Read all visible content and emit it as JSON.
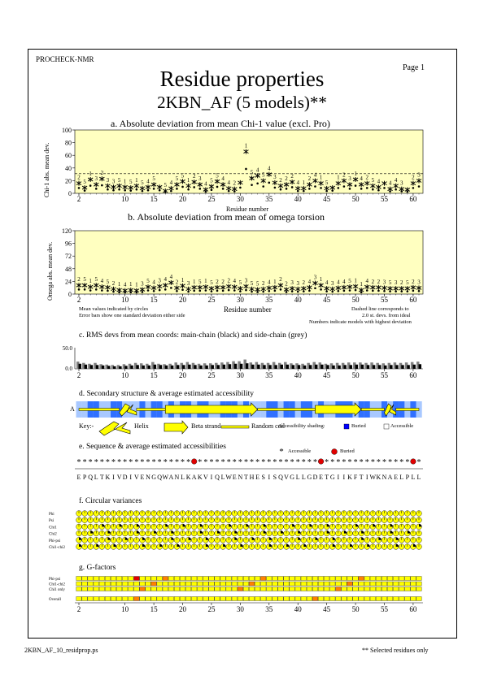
{
  "header": {
    "program": "PROCHECK-NMR",
    "page": "Page  1",
    "title": "Residue properties",
    "subtitle": "2KBN_AF (5 models)**"
  },
  "footer": {
    "filename": "2KBN_AF_10_residprop.ps",
    "note": "** Selected residues only"
  },
  "chart_data": [
    {
      "type": "scatter",
      "id": "a",
      "title": "a. Absolute deviation from mean Chi-1 value (excl. Pro)",
      "ylabel": "Chi-1 abs. mean dev.",
      "xlabel": "Residue number",
      "ylim": [
        0,
        100
      ],
      "yticks": [
        "0",
        "20",
        "40",
        "60",
        "80",
        "100"
      ],
      "xticks": [
        "2",
        "10",
        "15",
        "20",
        "25",
        "30",
        "35",
        "40",
        "45",
        "50",
        "55",
        "60"
      ],
      "xlim": [
        1,
        62
      ],
      "background": "#ffffc0",
      "dashed_line": 31,
      "x": [
        2,
        3,
        4,
        5,
        6,
        7,
        8,
        9,
        10,
        11,
        12,
        13,
        14,
        15,
        16,
        17,
        18,
        19,
        20,
        21,
        22,
        23,
        24,
        25,
        26,
        27,
        28,
        29,
        30,
        31,
        32,
        33,
        34,
        35,
        36,
        37,
        38,
        39,
        40,
        41,
        42,
        43,
        44,
        45,
        46,
        47,
        48,
        49,
        50,
        51,
        52,
        53,
        54,
        55,
        56,
        57,
        58,
        59,
        60,
        61
      ],
      "y": [
        12,
        5,
        18,
        10,
        19,
        8,
        6,
        8,
        6,
        5,
        8,
        4,
        6,
        10,
        6,
        0,
        4,
        10,
        15,
        8,
        14,
        10,
        2,
        7,
        15,
        10,
        4,
        3,
        13,
        62,
        20,
        24,
        16,
        26,
        13,
        8,
        10,
        14,
        4,
        4,
        10,
        16,
        12,
        4,
        5,
        12,
        16,
        10,
        18,
        10,
        12,
        8,
        6,
        12,
        3,
        8,
        3,
        2,
        12,
        16
      ],
      "labels": [
        "2",
        "5",
        "1",
        "3",
        "2",
        "3",
        "3",
        "5",
        "1",
        "5",
        "1",
        "5",
        "4",
        "5",
        "",
        "5",
        "4",
        "5",
        "5",
        "1",
        "2",
        "3",
        "4",
        "5",
        "5",
        "4",
        "4",
        "2",
        "",
        "1",
        "5",
        "4",
        "5",
        "4",
        "3",
        "2",
        "2",
        "2",
        "4",
        "1",
        "2",
        "4",
        "1",
        "5",
        "",
        "1",
        "2",
        "3",
        "1",
        "4",
        "2",
        "5",
        "4",
        "",
        "4",
        "4",
        "3",
        "",
        "2",
        "3"
      ]
    },
    {
      "type": "scatter",
      "id": "b",
      "title": "b. Absolute deviation from mean of omega torsion",
      "ylabel": "Omega abs. mean dev.",
      "xlabel": "Residue number",
      "ylim": [
        0,
        120
      ],
      "yticks": [
        "0",
        "24",
        "48",
        "72",
        "96",
        "120"
      ],
      "xticks": [
        "2",
        "10",
        "15",
        "20",
        "25",
        "30",
        "35",
        "40",
        "45",
        "50",
        "55",
        "60"
      ],
      "xlim": [
        1,
        62
      ],
      "background": "#ffffc0",
      "x": [
        2,
        3,
        4,
        5,
        6,
        7,
        8,
        9,
        10,
        11,
        12,
        13,
        14,
        15,
        16,
        17,
        18,
        19,
        20,
        21,
        22,
        23,
        24,
        25,
        26,
        27,
        28,
        29,
        30,
        31,
        32,
        33,
        34,
        35,
        36,
        37,
        38,
        39,
        40,
        41,
        42,
        43,
        44,
        45,
        46,
        47,
        48,
        49,
        50,
        51,
        52,
        53,
        54,
        55,
        56,
        57,
        58,
        59,
        60,
        61
      ],
      "y": [
        12,
        12,
        9,
        12,
        9,
        8,
        5,
        3,
        2,
        3,
        2,
        4,
        9,
        7,
        10,
        12,
        17,
        7,
        11,
        5,
        8,
        8,
        9,
        6,
        8,
        8,
        10,
        9,
        6,
        10,
        5,
        4,
        5,
        7,
        8,
        12,
        4,
        6,
        5,
        6,
        8,
        16,
        12,
        6,
        5,
        7,
        8,
        9,
        10,
        3,
        9,
        8,
        8,
        7,
        6,
        6,
        6,
        6,
        8,
        7
      ],
      "labels": [
        "2",
        "5",
        "1",
        "5",
        "4",
        "5",
        "2",
        "1",
        "4",
        "1",
        "1",
        "3",
        "5",
        "4",
        "3",
        "4",
        "4",
        "2",
        "1",
        "3",
        "1",
        "5",
        "1",
        "5",
        "2",
        "2",
        "2",
        "4",
        "5",
        "3",
        "5",
        "5",
        "2",
        "4",
        "1",
        "2",
        "2",
        "3",
        "3",
        "2",
        "4",
        "3",
        "1",
        "4",
        "3",
        "4",
        "4",
        "5",
        "1",
        "1",
        "4",
        "2",
        "2",
        "3",
        "5",
        "3",
        "2",
        "5",
        "2",
        "3"
      ]
    },
    {
      "type": "bar",
      "id": "c",
      "title": "c. RMS devs from mean coords: main-chain (black) and side-chain (grey)",
      "ylim": [
        0,
        50
      ],
      "yticks": [
        "0.0",
        "50.0"
      ],
      "xticks": [
        "2",
        "10",
        "15",
        "20",
        "25",
        "30",
        "35",
        "40",
        "45",
        "50",
        "55",
        "60"
      ],
      "series": [
        {
          "name": "main-chain",
          "values": [
            12,
            10,
            9,
            9,
            8,
            7,
            6,
            6,
            7,
            8,
            9,
            8,
            8,
            10,
            9,
            8,
            8,
            9,
            9,
            10,
            9,
            8,
            8,
            9,
            9,
            10,
            11,
            12,
            12,
            13,
            10,
            10,
            9,
            9,
            9,
            10,
            10,
            9,
            9,
            8,
            9,
            10,
            10,
            9,
            8,
            8,
            9,
            9,
            10,
            10,
            9,
            9,
            9,
            8,
            9,
            9,
            9,
            9,
            10,
            11
          ]
        },
        {
          "name": "side-chain",
          "values": [
            17,
            14,
            12,
            14,
            11,
            10,
            9,
            9,
            11,
            12,
            14,
            13,
            12,
            16,
            12,
            11,
            12,
            15,
            14,
            16,
            14,
            12,
            13,
            13,
            14,
            15,
            16,
            18,
            18,
            22,
            15,
            16,
            14,
            14,
            16,
            14,
            16,
            13,
            13,
            12,
            14,
            16,
            15,
            12,
            13,
            14,
            14,
            15,
            15,
            15,
            14,
            15,
            14,
            13,
            14,
            15,
            14,
            15,
            16,
            17
          ]
        }
      ]
    },
    {
      "type": "heatmap",
      "id": "d",
      "title": "d. Secondary structure & average estimated accessibility",
      "chain": "A",
      "accessibility": [
        1,
        1,
        0,
        0,
        1,
        1,
        0,
        0,
        1,
        1,
        1,
        0,
        1,
        0,
        0,
        1,
        0,
        1,
        0,
        0,
        1,
        0,
        0,
        1,
        1,
        0,
        0,
        0,
        1,
        0,
        1,
        1,
        1,
        0,
        0,
        1,
        0,
        0,
        1,
        0,
        0,
        1,
        0,
        1,
        1,
        0,
        0,
        0,
        1,
        0,
        0,
        1,
        1,
        0,
        1,
        0,
        0,
        1,
        0,
        1
      ],
      "segments": [
        {
          "type": "coil",
          "start": 2,
          "end": 9
        },
        {
          "type": "helix",
          "start": 9,
          "end": 12
        },
        {
          "type": "coil",
          "start": 12,
          "end": 17
        },
        {
          "type": "strand",
          "start": 17,
          "end": 33
        },
        {
          "type": "coil",
          "start": 33,
          "end": 43
        },
        {
          "type": "strand",
          "start": 43,
          "end": 51
        },
        {
          "type": "coil",
          "start": 51,
          "end": 55
        },
        {
          "type": "helix",
          "start": 55,
          "end": 57
        },
        {
          "type": "coil",
          "start": 57,
          "end": 61
        }
      ],
      "key": {
        "label": "Key:-",
        "helix": "Helix",
        "strand": "Beta strand",
        "coil": "Random coil",
        "shading": "Accessibility shading:",
        "buried": "Buried",
        "accessible": "Accessible"
      }
    },
    {
      "type": "table",
      "id": "e",
      "title": "e. Sequence & average estimated accessibilities",
      "legend": {
        "accessible": "Accessible",
        "buried": "Buried"
      },
      "sequence": [
        "E",
        "P",
        "Q",
        "L",
        "T",
        "K",
        "I",
        "V",
        "D",
        "I",
        "V",
        "E",
        "N",
        "G",
        "Q",
        "W",
        "A",
        "N",
        "L",
        "K",
        "A",
        "K",
        "V",
        "I",
        "Q",
        "L",
        "W",
        "E",
        "N",
        "T",
        "H",
        "E",
        "S",
        "I",
        "S",
        "Q",
        "V",
        "G",
        "L",
        "L",
        "G",
        "D",
        "E",
        "T",
        "G",
        "I",
        "I",
        "K",
        "F",
        "T",
        "I",
        "W",
        "K",
        "N",
        "A",
        "E",
        "L",
        "P",
        "L",
        "L"
      ],
      "buried": [
        0,
        0,
        0,
        0,
        0,
        0,
        0,
        0,
        0,
        0,
        0,
        0,
        0,
        0,
        0,
        0,
        0,
        0,
        0,
        0,
        1,
        0,
        0,
        0,
        0,
        0,
        0,
        0,
        0,
        0,
        0,
        0,
        0,
        0,
        0,
        0,
        0,
        0,
        0,
        0,
        0,
        0,
        1,
        0,
        0,
        0,
        0,
        0,
        0,
        0,
        0,
        0,
        0,
        0,
        0,
        0,
        0,
        0,
        1,
        0
      ]
    },
    {
      "type": "table",
      "id": "f",
      "title": "f. Circular variances",
      "rows": [
        "Phi",
        "Psi",
        "Chi1",
        "Chi2",
        "Phi-psi",
        "Chi1-chi2"
      ]
    },
    {
      "type": "heatmap",
      "id": "g",
      "title": "g. G-factors",
      "rows": [
        "Phi-psi",
        "Chi1-chi2",
        "Chi1 only",
        "Overall"
      ],
      "xticks": [
        "2",
        "10",
        "15",
        "20",
        "25",
        "30",
        "35",
        "40",
        "45",
        "50",
        "55",
        "60"
      ]
    }
  ],
  "annotations": {
    "mean_note": "Mean values indicated by circles",
    "err_note": "Error bars show one standard deviation either side",
    "dashed_note": "Dashed line corresponds to",
    "dashed_note2": "2.0 st. devs. from ideal",
    "models_note": "Numbers indicate models with highest deviation"
  },
  "colors": {
    "plot_bg": "#ffffc0",
    "yellow": "#ffff00",
    "buried": "#0000ff",
    "accessible": "#ffffff",
    "red": "#e00000",
    "orange": "#ff8000"
  }
}
